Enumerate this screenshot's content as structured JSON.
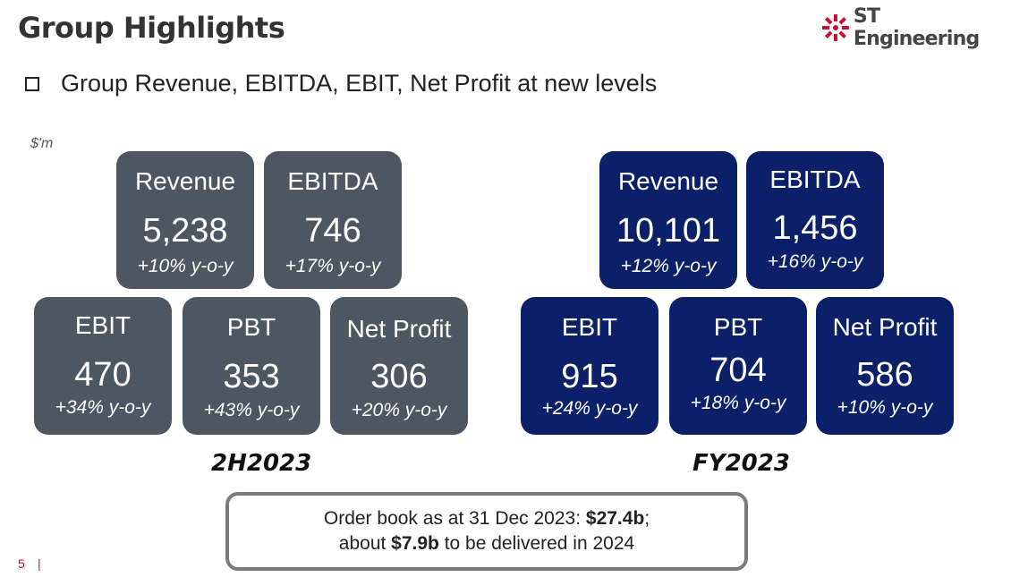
{
  "header": {
    "title": "Group Highlights",
    "logo_text": "ST Engineering",
    "logo_color": "#c8102e"
  },
  "bullet": "Group Revenue, EBITDA, EBIT, Net Profit at new levels",
  "unit": "$'m",
  "colors": {
    "h2_tile": "#4c5762",
    "fy_tile": "#0b2068"
  },
  "h2": {
    "period": "2H2023",
    "revenue": {
      "label": "Revenue",
      "value": "5,238",
      "change": "+10% y-o-y"
    },
    "ebitda": {
      "label": "EBITDA",
      "value": "746",
      "change": "+17% y-o-y"
    },
    "ebit": {
      "label": "EBIT",
      "value": "470",
      "change": "+34% y-o-y"
    },
    "pbt": {
      "label": "PBT",
      "value": "353",
      "change": "+43% y-o-y"
    },
    "net_profit": {
      "label": "Net Profit",
      "value": "306",
      "change": "+20% y-o-y"
    }
  },
  "fy": {
    "period": "FY2023",
    "revenue": {
      "label": "Revenue",
      "value": "10,101",
      "change": "+12% y-o-y"
    },
    "ebitda": {
      "label": "EBITDA",
      "value": "1,456",
      "change": "+16% y-o-y"
    },
    "ebit": {
      "label": "EBIT",
      "value": "915",
      "change": "+24% y-o-y"
    },
    "pbt": {
      "label": "PBT",
      "value": "704",
      "change": "+18% y-o-y"
    },
    "net_profit": {
      "label": "Net Profit",
      "value": "586",
      "change": "+10% y-o-y"
    }
  },
  "order_book": {
    "line1_prefix": "Order book as at 31 Dec 2023: ",
    "line1_amount": "$27.4b",
    "line1_suffix": ";",
    "line2_prefix": "about ",
    "line2_amount": "$7.9b",
    "line2_suffix": " to be delivered in 2024"
  },
  "footer": {
    "page": "5",
    "separator": "|"
  }
}
